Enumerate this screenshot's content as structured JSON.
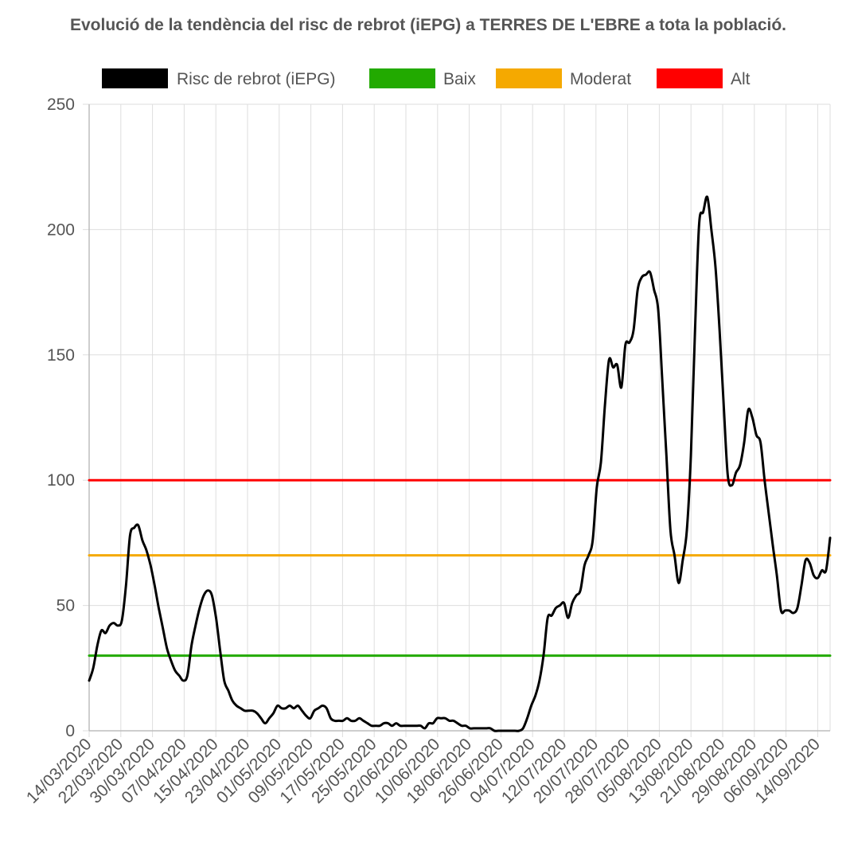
{
  "chart_data": {
    "type": "line",
    "title": "Evolució de la tendència del risc de rebrot (iEPG) a TERRES DE L'EBRE a tota la població.",
    "xlabel": "",
    "ylabel": "",
    "ylim": [
      0,
      250
    ],
    "yticks": [
      "0",
      "50",
      "100",
      "150",
      "200",
      "250"
    ],
    "x_tick_labels": [
      "14/03/2020",
      "22/03/2020",
      "30/03/2020",
      "07/04/2020",
      "15/04/2020",
      "23/04/2020",
      "01/05/2020",
      "09/05/2020",
      "17/05/2020",
      "25/05/2020",
      "02/06/2020",
      "10/06/2020",
      "18/06/2020",
      "26/06/2020",
      "04/07/2020",
      "12/07/2020",
      "20/07/2020",
      "28/07/2020",
      "05/08/2020",
      "13/08/2020",
      "21/08/2020",
      "29/08/2020",
      "06/09/2020",
      "14/09/2020"
    ],
    "grid": true,
    "legend_position": "top",
    "series": [
      {
        "name": "Risc de rebrot (iEPG)",
        "color": "#000000",
        "values": [
          20,
          25,
          34,
          40,
          39,
          42,
          43,
          42,
          44,
          58,
          78,
          81,
          82,
          76,
          72,
          66,
          58,
          49,
          41,
          33,
          28,
          24,
          22,
          20,
          22,
          34,
          42,
          49,
          54,
          56,
          54,
          45,
          32,
          20,
          16,
          12,
          10,
          9,
          8,
          8,
          8,
          7,
          5,
          3,
          5,
          7,
          10,
          9,
          9,
          10,
          9,
          10,
          8,
          6,
          5,
          8,
          9,
          10,
          9,
          5,
          4,
          4,
          4,
          5,
          4,
          4,
          5,
          4,
          3,
          2,
          2,
          2,
          3,
          3,
          2,
          3,
          2,
          2,
          2,
          2,
          2,
          2,
          1,
          3,
          3,
          5,
          5,
          5,
          4,
          4,
          3,
          2,
          2,
          1,
          1,
          1,
          1,
          1,
          1,
          0,
          0,
          0,
          0,
          0,
          0,
          0,
          1,
          5,
          10,
          14,
          20,
          30,
          45,
          46,
          49,
          50,
          51,
          45,
          51,
          54,
          56,
          66,
          70,
          76,
          97,
          107,
          130,
          148,
          145,
          146,
          137,
          154,
          155,
          160,
          176,
          181,
          182,
          183,
          176,
          168,
          140,
          110,
          80,
          70,
          59,
          68,
          80,
          110,
          160,
          202,
          207,
          213,
          200,
          185,
          160,
          130,
          102,
          98,
          103,
          106,
          115,
          128,
          125,
          118,
          115,
          100,
          87,
          74,
          62,
          48,
          48,
          48,
          47,
          49,
          58,
          68,
          67,
          62,
          61,
          64,
          64,
          77
        ]
      },
      {
        "name": "Baix",
        "color": "#22aa00",
        "values": [
          30,
          30
        ]
      },
      {
        "name": "Moderat",
        "color": "#f5a900",
        "values": [
          70,
          70
        ]
      },
      {
        "name": "Alt",
        "color": "#ff0000",
        "values": [
          100,
          100
        ]
      }
    ]
  }
}
